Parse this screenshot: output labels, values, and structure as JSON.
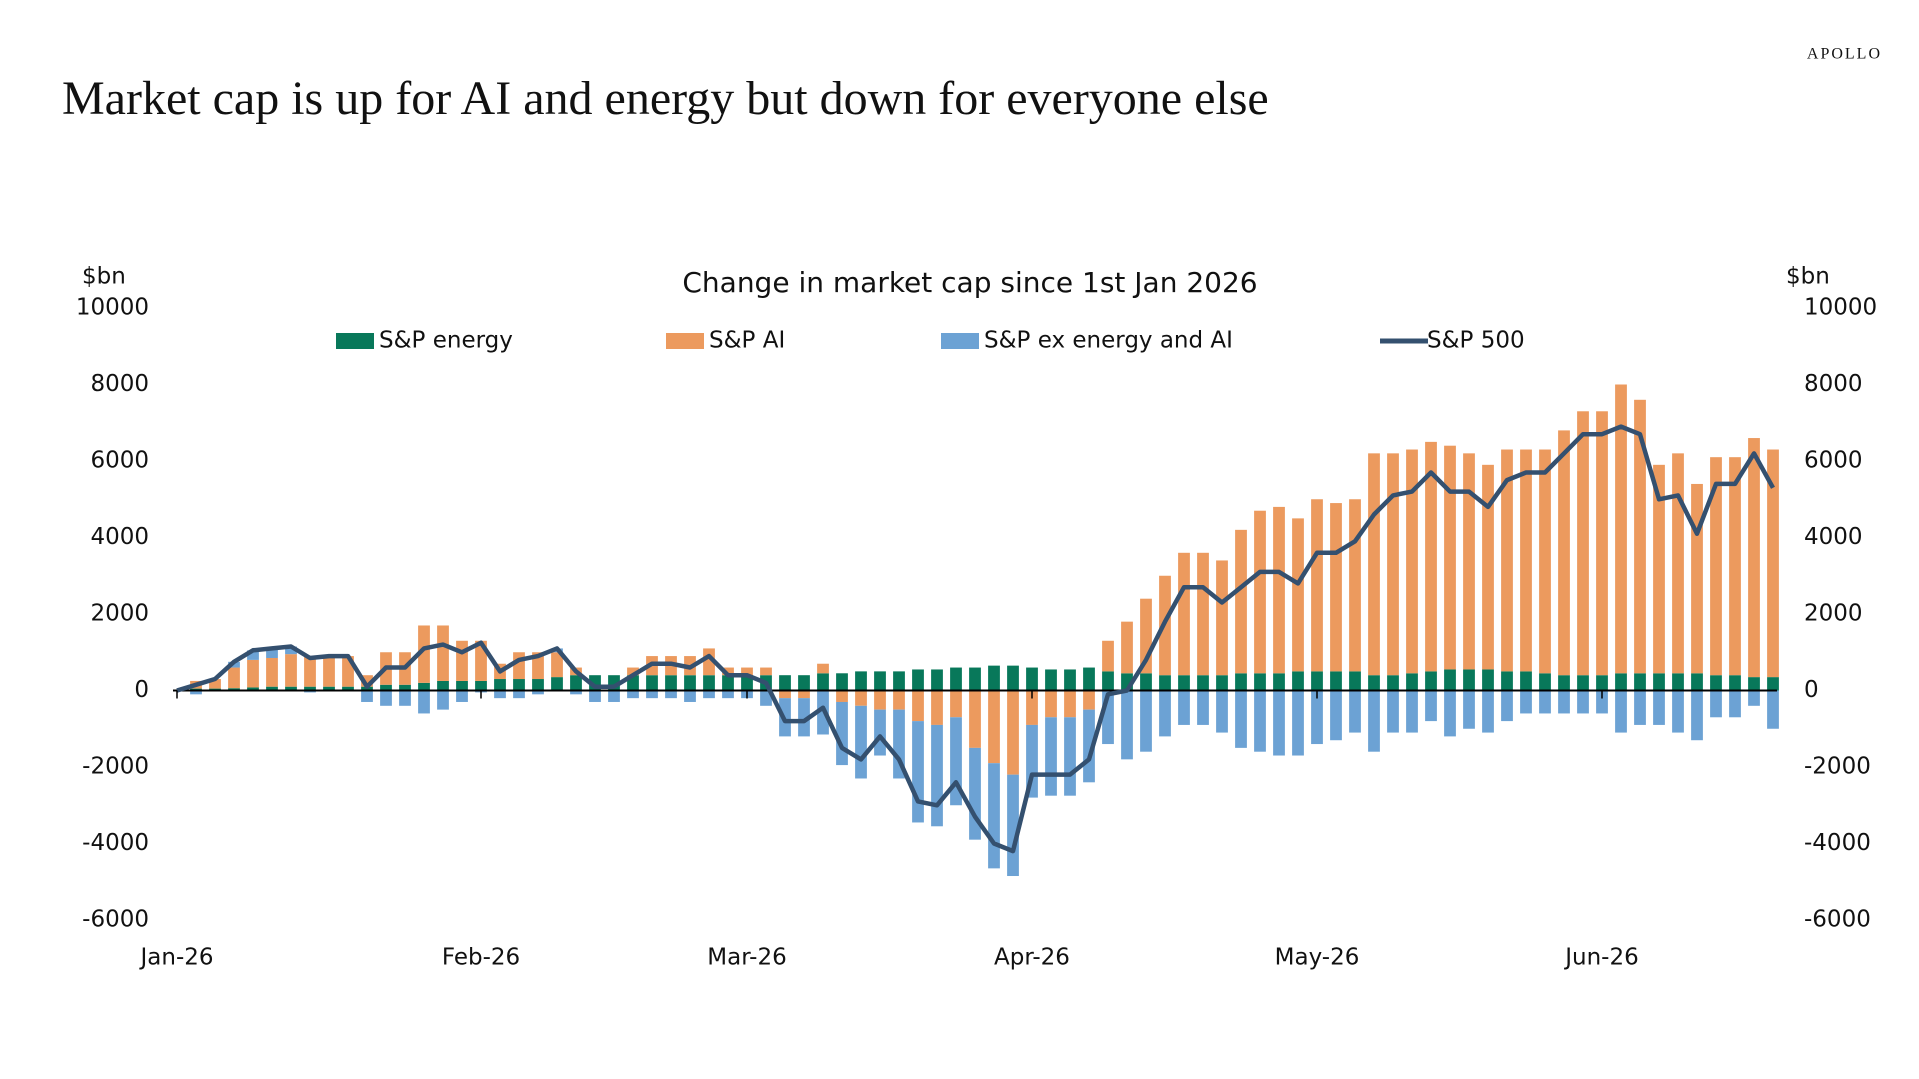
{
  "brand": "APOLLO",
  "header": {
    "title": "Market cap is up for AI and energy but down for everyone else"
  },
  "chart_data": {
    "type": "bar",
    "stacked": true,
    "title": "Change in market cap since 1st Jan 2026",
    "y_label": "$bn",
    "y2_label": "$bn",
    "categories": [
      "Jan-26",
      null,
      null,
      null,
      null,
      null,
      null,
      null,
      null,
      null,
      null,
      null,
      null,
      null,
      null,
      null,
      "Feb-26",
      null,
      null,
      null,
      null,
      null,
      null,
      null,
      null,
      null,
      null,
      null,
      null,
      null,
      "Mar-26",
      null,
      null,
      null,
      null,
      null,
      null,
      null,
      null,
      null,
      null,
      null,
      null,
      null,
      null,
      "Apr-26",
      null,
      null,
      null,
      null,
      null,
      null,
      null,
      null,
      null,
      null,
      null,
      null,
      null,
      null,
      "May-26",
      null,
      null,
      null,
      null,
      null,
      null,
      null,
      null,
      null,
      null,
      null,
      null,
      null,
      null,
      "Jun-26",
      null,
      null,
      null,
      null,
      null,
      null,
      null,
      null,
      null
    ],
    "ylim": [
      -6000,
      10000
    ],
    "yticks": [
      -6000,
      -4000,
      -2000,
      0,
      2000,
      4000,
      6000,
      8000,
      10000
    ],
    "y2lim": [
      -6000,
      10000
    ],
    "y2ticks": [
      -6000,
      -4000,
      -2000,
      0,
      2000,
      4000,
      6000,
      8000,
      10000
    ],
    "legend": "top",
    "series": [
      {
        "name": "S&P energy",
        "type": "bar",
        "color": "#08785a",
        "values": [
          0,
          50,
          50,
          60,
          80,
          100,
          100,
          100,
          100,
          100,
          100,
          150,
          150,
          200,
          250,
          250,
          250,
          300,
          300,
          300,
          350,
          400,
          400,
          400,
          400,
          400,
          400,
          400,
          400,
          400,
          400,
          400,
          400,
          400,
          450,
          450,
          500,
          500,
          500,
          550,
          550,
          600,
          600,
          650,
          650,
          600,
          550,
          550,
          600,
          500,
          450,
          450,
          400,
          400,
          400,
          400,
          450,
          450,
          450,
          500,
          500,
          500,
          500,
          400,
          400,
          450,
          500,
          550,
          550,
          550,
          500,
          500,
          450,
          400,
          400,
          400,
          450,
          450,
          450,
          450,
          450,
          400,
          400,
          350,
          350
        ]
      },
      {
        "name": "S&P AI",
        "type": "bar",
        "color": "#ec9a5e",
        "values": [
          0,
          200,
          250,
          540,
          720,
          750,
          850,
          800,
          800,
          800,
          300,
          850,
          850,
          1500,
          1450,
          1050,
          1050,
          400,
          700,
          700,
          650,
          200,
          0,
          0,
          200,
          500,
          500,
          500,
          700,
          200,
          200,
          200,
          -200,
          -200,
          250,
          -300,
          -400,
          -500,
          -500,
          -800,
          -900,
          -700,
          -1500,
          -1900,
          -2200,
          -900,
          -700,
          -700,
          -500,
          800,
          1350,
          1950,
          2600,
          3200,
          3200,
          3000,
          3750,
          4250,
          4350,
          4000,
          4500,
          4400,
          4500,
          5800,
          5800,
          5850,
          6000,
          5850,
          5650,
          5350,
          5800,
          5800,
          5850,
          6400,
          6900,
          6900,
          7550,
          7150,
          5450,
          5750,
          4950,
          5700,
          5700,
          6250,
          5950
        ]
      },
      {
        "name": "S&P ex energy and AI",
        "type": "bar",
        "color": "#6ca2d4",
        "values": [
          0,
          -100,
          0,
          150,
          250,
          250,
          200,
          -50,
          0,
          0,
          -300,
          -400,
          -400,
          -600,
          -500,
          -300,
          -50,
          -200,
          -200,
          -100,
          100,
          -100,
          -300,
          -300,
          -200,
          -200,
          -200,
          -300,
          -200,
          -200,
          -200,
          -400,
          -1000,
          -1000,
          -1150,
          -1650,
          -1900,
          -1200,
          -1800,
          -2650,
          -2650,
          -2300,
          -2400,
          -2750,
          -2650,
          -1900,
          -2050,
          -2050,
          -1900,
          -1400,
          -1800,
          -1600,
          -1200,
          -900,
          -900,
          -1100,
          -1500,
          -1600,
          -1700,
          -1700,
          -1400,
          -1300,
          -1100,
          -1600,
          -1100,
          -1100,
          -800,
          -1200,
          -1000,
          -1100,
          -800,
          -600,
          -600,
          -600,
          -600,
          -600,
          -1100,
          -900,
          -900,
          -1100,
          -1300,
          -700,
          -700,
          -400,
          -1000
        ]
      },
      {
        "name": "S&P 500",
        "type": "line",
        "color": "#34506f",
        "values": [
          0,
          150,
          300,
          750,
          1050,
          1100,
          1150,
          850,
          900,
          900,
          100,
          600,
          600,
          1100,
          1200,
          1000,
          1250,
          500,
          800,
          900,
          1100,
          500,
          100,
          100,
          400,
          700,
          700,
          600,
          900,
          400,
          400,
          200,
          -800,
          -800,
          -450,
          -1500,
          -1800,
          -1200,
          -1800,
          -2900,
          -3000,
          -2400,
          -3300,
          -4000,
          -4200,
          -2200,
          -2200,
          -2200,
          -1800,
          -100,
          0,
          800,
          1800,
          2700,
          2700,
          2300,
          2700,
          3100,
          3100,
          2800,
          3600,
          3600,
          3900,
          4600,
          5100,
          5200,
          5700,
          5200,
          5200,
          4800,
          5500,
          5700,
          5700,
          6200,
          6700,
          6700,
          6900,
          6700,
          5000,
          5100,
          4100,
          5400,
          5400,
          6200,
          5300
        ]
      }
    ]
  }
}
